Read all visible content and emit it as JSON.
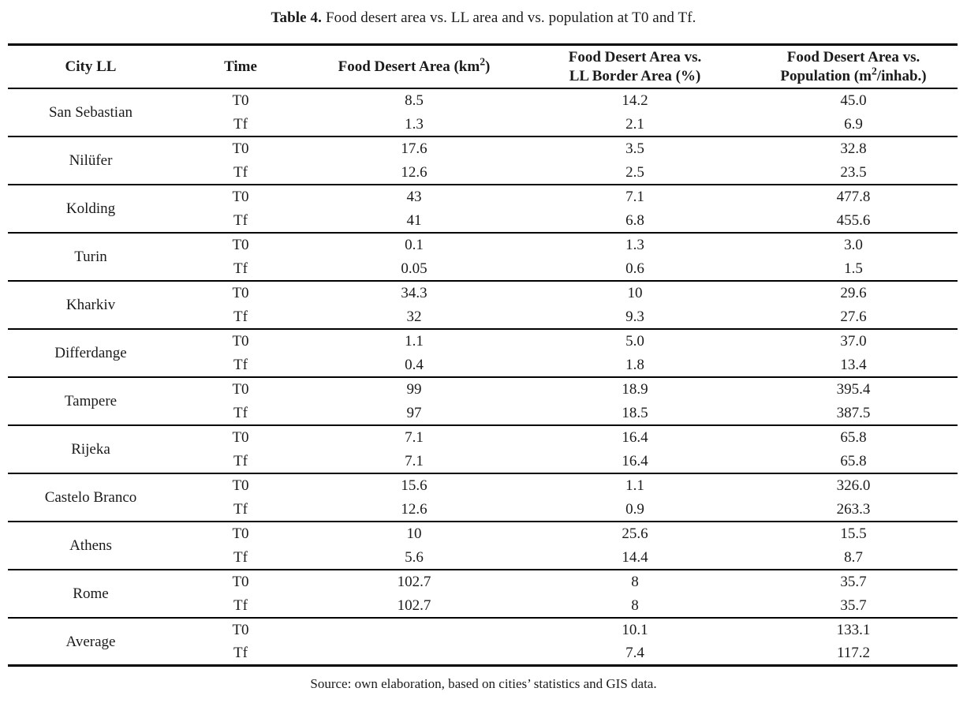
{
  "caption": {
    "label": "Table 4.",
    "text": "Food desert area vs. LL area and vs. population at T0 and Tf."
  },
  "table": {
    "header": {
      "city": "City LL",
      "time": "Time",
      "fda": {
        "pre": "Food Desert Area (km",
        "sup": "2",
        "post": ")"
      },
      "vs_border": {
        "line1": "Food Desert Area vs.",
        "line2": "LL Border Area (%)"
      },
      "vs_population": {
        "line1": "Food Desert Area vs.",
        "line2_pre": "Population (m",
        "sup": "2",
        "line2_post": "/inhab.)"
      }
    },
    "groups": [
      {
        "city": "San Sebastian",
        "rows": [
          {
            "time": "T0",
            "values": [
              "8.5",
              "14.2",
              "45.0"
            ]
          },
          {
            "time": "Tf",
            "values": [
              "1.3",
              "2.1",
              "6.9"
            ]
          }
        ]
      },
      {
        "city": "Nilüfer",
        "rows": [
          {
            "time": "T0",
            "values": [
              "17.6",
              "3.5",
              "32.8"
            ]
          },
          {
            "time": "Tf",
            "values": [
              "12.6",
              "2.5",
              "23.5"
            ]
          }
        ]
      },
      {
        "city": "Kolding",
        "rows": [
          {
            "time": "T0",
            "values": [
              "43",
              "7.1",
              "477.8"
            ]
          },
          {
            "time": "Tf",
            "values": [
              "41",
              "6.8",
              "455.6"
            ]
          }
        ]
      },
      {
        "city": "Turin",
        "rows": [
          {
            "time": "T0",
            "values": [
              "0.1",
              "1.3",
              "3.0"
            ]
          },
          {
            "time": "Tf",
            "values": [
              "0.05",
              "0.6",
              "1.5"
            ]
          }
        ]
      },
      {
        "city": "Kharkiv",
        "rows": [
          {
            "time": "T0",
            "values": [
              "34.3",
              "10",
              "29.6"
            ]
          },
          {
            "time": "Tf",
            "values": [
              "32",
              "9.3",
              "27.6"
            ]
          }
        ]
      },
      {
        "city": "Differdange",
        "rows": [
          {
            "time": "T0",
            "values": [
              "1.1",
              "5.0",
              "37.0"
            ]
          },
          {
            "time": "Tf",
            "values": [
              "0.4",
              "1.8",
              "13.4"
            ]
          }
        ]
      },
      {
        "city": "Tampere",
        "rows": [
          {
            "time": "T0",
            "values": [
              "99",
              "18.9",
              "395.4"
            ]
          },
          {
            "time": "Tf",
            "values": [
              "97",
              "18.5",
              "387.5"
            ]
          }
        ]
      },
      {
        "city": "Rijeka",
        "rows": [
          {
            "time": "T0",
            "values": [
              "7.1",
              "16.4",
              "65.8"
            ]
          },
          {
            "time": "Tf",
            "values": [
              "7.1",
              "16.4",
              "65.8"
            ]
          }
        ]
      },
      {
        "city": "Castelo Branco",
        "rows": [
          {
            "time": "T0",
            "values": [
              "15.6",
              "1.1",
              "326.0"
            ]
          },
          {
            "time": "Tf",
            "values": [
              "12.6",
              "0.9",
              "263.3"
            ]
          }
        ]
      },
      {
        "city": "Athens",
        "rows": [
          {
            "time": "T0",
            "values": [
              "10",
              "25.6",
              "15.5"
            ]
          },
          {
            "time": "Tf",
            "values": [
              "5.6",
              "14.4",
              "8.7"
            ]
          }
        ]
      },
      {
        "city": "Rome",
        "rows": [
          {
            "time": "T0",
            "values": [
              "102.7",
              "8",
              "35.7"
            ]
          },
          {
            "time": "Tf",
            "values": [
              "102.7",
              "8",
              "35.7"
            ]
          }
        ]
      },
      {
        "city": "Average",
        "rows": [
          {
            "time": "T0",
            "values": [
              "",
              "10.1",
              "133.1"
            ]
          },
          {
            "time": "Tf",
            "values": [
              "",
              "7.4",
              "117.2"
            ]
          }
        ]
      }
    ]
  },
  "source": "Source: own elaboration, based on cities’ statistics and GIS data."
}
